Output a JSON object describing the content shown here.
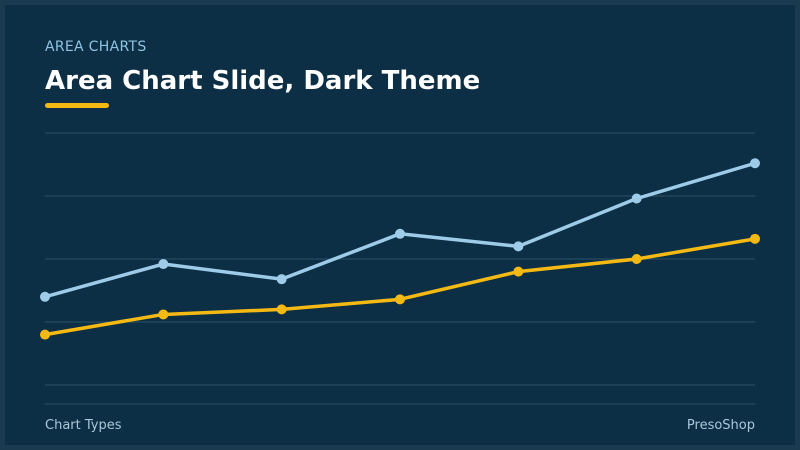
{
  "chart_data": {
    "type": "line",
    "kicker": "AREA CHARTS",
    "title": "Area Chart Slide, Dark Theme",
    "footer_left": "Chart Types",
    "footer_right": "PresoShop",
    "categories": [
      null,
      null,
      null,
      null,
      null,
      null,
      null
    ],
    "series": [
      {
        "color": "#9dcbe8",
        "values": [
          35,
          48,
          42,
          60,
          55,
          74,
          88
        ]
      },
      {
        "color": "#f5b914",
        "values": [
          20,
          28,
          30,
          34,
          45,
          50,
          58
        ]
      }
    ],
    "ylim": [
      0,
      100
    ],
    "yticks": [
      0,
      25,
      50,
      75,
      100
    ],
    "grid": true,
    "tick_labels": false
  }
}
